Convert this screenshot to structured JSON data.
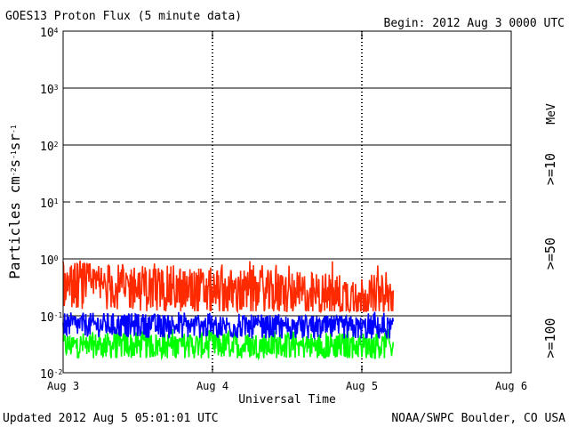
{
  "chart_data": {
    "type": "line",
    "title": "GOES13 Proton Flux (5 minute data)",
    "begin_label": "Begin: 2012 Aug 3 0000 UTC",
    "xlabel": "Universal Time",
    "ylabel_main": "Particles cm",
    "ylabel_exp1": "-2",
    "ylabel_mid1": "s",
    "ylabel_exp2": "-1",
    "ylabel_mid2": "sr",
    "ylabel_exp3": "-1",
    "y_scale": "log",
    "ylim": [
      0.01,
      10000
    ],
    "y_tick_bases": [
      "10",
      "10",
      "10",
      "10",
      "10",
      "10",
      "10"
    ],
    "y_tick_exps": [
      "-2",
      "-1",
      "0",
      "1",
      "2",
      "3",
      "4"
    ],
    "xlim_days": [
      0,
      3
    ],
    "x_tick_labels": [
      "Aug 3",
      "Aug 4",
      "Aug 5",
      "Aug 6"
    ],
    "data_end_day": 2.21,
    "dashed_threshold": 10,
    "series": [
      {
        "name": ">=10",
        "color": "#ff2a00",
        "typical": 0.35,
        "min": 0.12,
        "max": 1.0,
        "end_typical": 0.2
      },
      {
        "name": ">=50",
        "color": "#0000ff",
        "typical": 0.07,
        "min": 0.04,
        "max": 0.12,
        "end_typical": 0.06
      },
      {
        "name": ">=100",
        "color": "#00ff00",
        "typical": 0.03,
        "min": 0.018,
        "max": 0.06,
        "end_typical": 0.03
      }
    ],
    "legend_unit": "MeV",
    "legend_placement": "right",
    "unit_color": "#000000",
    "series_label_color_mid": "#7a3fd0"
  },
  "footer": {
    "updated": "Updated 2012 Aug  5 05:01:01 UTC",
    "source": "NOAA/SWPC Boulder, CO USA"
  }
}
